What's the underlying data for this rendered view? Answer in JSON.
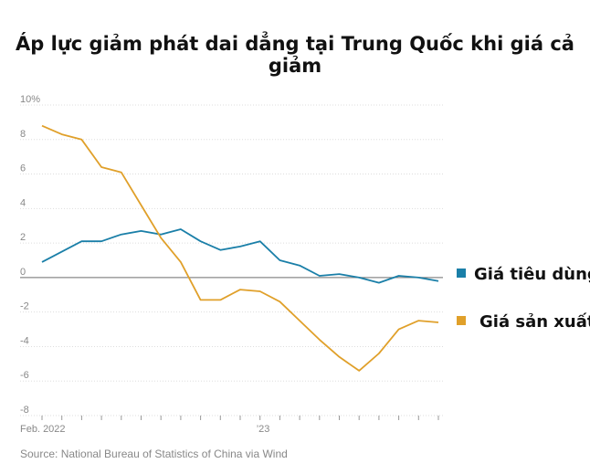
{
  "title": "Áp lực giảm phát dai dẳng tại Trung Quốc khi giá cả giảm",
  "source": "Source: National Bureau of Statistics of China via Wind",
  "colors": {
    "cpi": "#1a7fa8",
    "ppi": "#e0a02a",
    "grid": "#dddddd",
    "zero": "#888888"
  },
  "chart_data": {
    "type": "line",
    "title": "Áp lực giảm phát dai dẳng tại Trung Quốc khi giá cả giảm",
    "ylim": [
      -8,
      10
    ],
    "y_ticks": [
      10,
      8,
      6,
      4,
      2,
      0,
      -2,
      -4,
      -6,
      -8
    ],
    "y_tick_labels": [
      "10%",
      "8",
      "6",
      "4",
      "2",
      "0",
      "-2",
      "-4",
      "-6",
      "-8"
    ],
    "x": [
      "2022-02",
      "2022-03",
      "2022-04",
      "2022-05",
      "2022-06",
      "2022-07",
      "2022-08",
      "2022-09",
      "2022-10",
      "2022-11",
      "2022-12",
      "2023-01",
      "2023-02",
      "2023-03",
      "2023-04",
      "2023-05",
      "2023-06",
      "2023-07",
      "2023-08",
      "2023-09",
      "2023-10"
    ],
    "x_tick_labels": [
      {
        "x": "2022-02",
        "label": "Feb. 2022"
      },
      {
        "x": "2023-01",
        "label": "’23"
      }
    ],
    "grid": true,
    "legend_position": "right",
    "series": [
      {
        "name": "Giá tiêu dùng",
        "key": "cpi",
        "values": [
          0.9,
          1.5,
          2.1,
          2.1,
          2.5,
          2.7,
          2.5,
          2.8,
          2.1,
          1.6,
          1.8,
          2.1,
          1.0,
          0.7,
          0.1,
          0.2,
          0.0,
          -0.3,
          0.1,
          0.0,
          -0.2
        ]
      },
      {
        "name": "Giá sản xuất",
        "key": "ppi",
        "values": [
          8.8,
          8.3,
          8.0,
          6.4,
          6.1,
          4.2,
          2.3,
          0.9,
          -1.3,
          -1.3,
          -0.7,
          -0.8,
          -1.4,
          -2.5,
          -3.6,
          -4.6,
          -5.4,
          -4.4,
          -3.0,
          -2.5,
          -2.6
        ]
      }
    ]
  }
}
